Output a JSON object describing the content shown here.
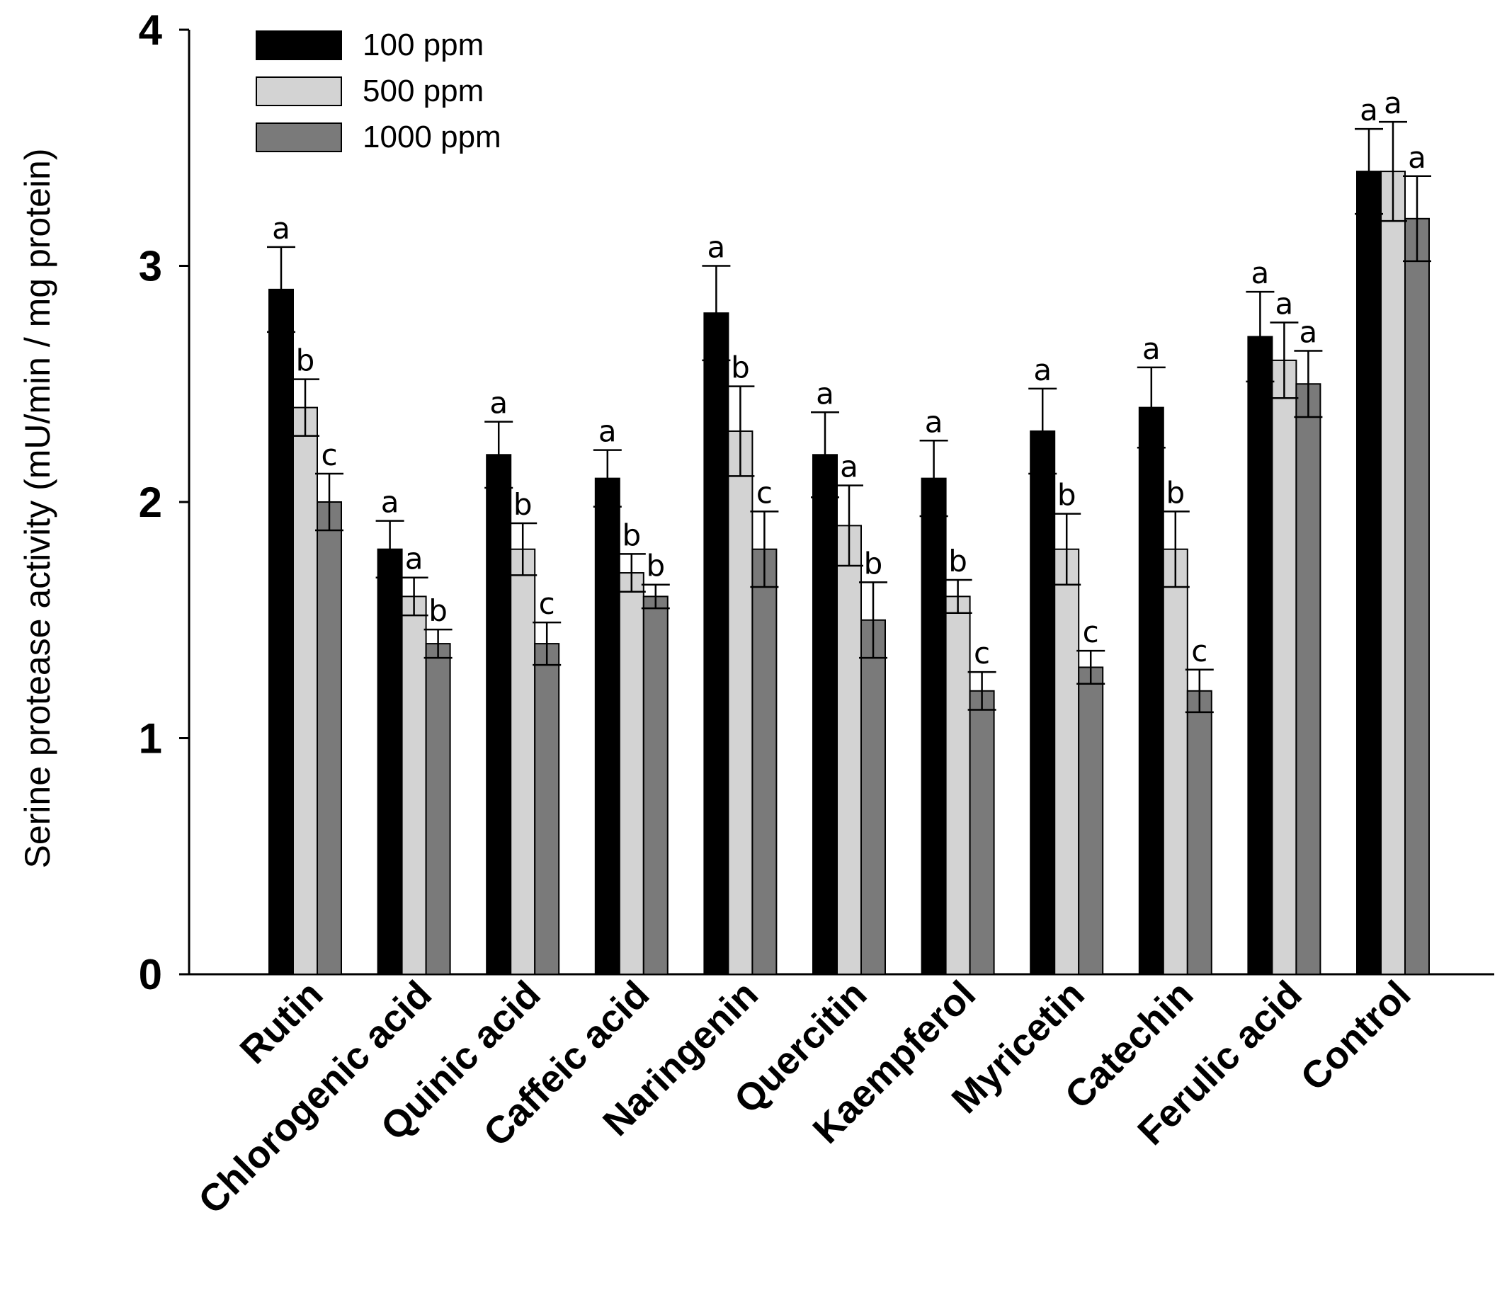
{
  "chart_data": {
    "type": "bar",
    "title": "",
    "xlabel": "",
    "ylabel": "Serine protease activity (mU/min / mg protein)",
    "ylim": [
      0,
      4
    ],
    "yticks": [
      "0",
      "1",
      "2",
      "3",
      "4"
    ],
    "grid": false,
    "legend_position": "top-left",
    "categories": [
      "Rutin",
      "Chlorogenic  acid",
      "Quinic acid",
      "Caffeic acid",
      "Naringenin",
      "Quercitin",
      "Kaempferol",
      "Myricetin",
      "Catechin",
      "Ferulic acid",
      "Control"
    ],
    "series": [
      {
        "name": "100 ppm",
        "color": "#000000",
        "values": [
          2.9,
          1.8,
          2.2,
          2.1,
          2.8,
          2.2,
          2.1,
          2.3,
          2.4,
          2.7,
          3.4
        ],
        "errors": [
          0.18,
          0.12,
          0.14,
          0.12,
          0.2,
          0.18,
          0.16,
          0.18,
          0.17,
          0.19,
          0.18
        ],
        "letters": [
          "a",
          "a",
          "a",
          "a",
          "a",
          "a",
          "a",
          "a",
          "a",
          "a",
          "a"
        ]
      },
      {
        "name": "500 ppm",
        "color": "#d3d3d3",
        "values": [
          2.4,
          1.6,
          1.8,
          1.7,
          2.3,
          1.9,
          1.6,
          1.8,
          1.8,
          2.6,
          3.4
        ],
        "errors": [
          0.12,
          0.08,
          0.11,
          0.08,
          0.19,
          0.17,
          0.07,
          0.15,
          0.16,
          0.16,
          0.21
        ],
        "letters": [
          "b",
          "a",
          "b",
          "b",
          "b",
          "a",
          "b",
          "b",
          "b",
          "a",
          "a"
        ]
      },
      {
        "name": "1000 ppm",
        "color": "#7a7a7a",
        "values": [
          2.0,
          1.4,
          1.4,
          1.6,
          1.8,
          1.5,
          1.2,
          1.3,
          1.2,
          2.5,
          3.2
        ],
        "errors": [
          0.12,
          0.06,
          0.09,
          0.05,
          0.16,
          0.16,
          0.08,
          0.07,
          0.09,
          0.14,
          0.18
        ],
        "letters": [
          "c",
          "b",
          "c",
          "b",
          "c",
          "b",
          "c",
          "c",
          "c",
          "a",
          "a"
        ]
      }
    ]
  }
}
